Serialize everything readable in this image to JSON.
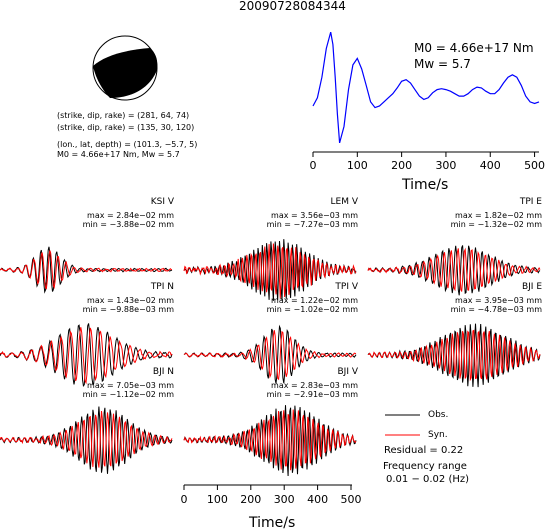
{
  "title": "20090728084344",
  "mechanism": {
    "plane1": "(strike, dip, rake) = (281, 64, 74)",
    "plane2": "(strike, dip, rake) = (135, 30, 120)",
    "location": "(lon., lat, depth) = (101.3, −5.7, 5)",
    "moment_line": "M0 = 4.66e+17 Nm, Mw = 5.7",
    "strike_deg": 281,
    "dip_deg": 64,
    "rake_deg": 74
  },
  "stf": {
    "m0_text": "M0 = 4.66e+17 Nm",
    "mw_text": "Mw = 5.7",
    "xlabel": "Time/s",
    "xticks": [
      0,
      100,
      200,
      300,
      400,
      500
    ],
    "color": "#0000ff"
  },
  "stations": [
    {
      "name": "KSI V",
      "max": "max = 2.84e−02 mm",
      "min": "min = −3.88e−02 mm"
    },
    {
      "name": "LEM V",
      "max": "max = 3.56e−03 mm",
      "min": "min = −7.27e−03 mm"
    },
    {
      "name": "TPI E",
      "max": "max = 1.82e−02 mm",
      "min": "min = −1.32e−02 mm"
    },
    {
      "name": "TPI N",
      "max": "max = 1.43e−02 mm",
      "min": "min = −9.88e−03 mm"
    },
    {
      "name": "TPI V",
      "max": "max = 1.22e−02 mm",
      "min": "min = −1.02e−02 mm"
    },
    {
      "name": "BJI E",
      "max": "max = 3.95e−03 mm",
      "min": "min = −4.78e−03 mm"
    },
    {
      "name": "BJI N",
      "max": "max = 7.05e−03 mm",
      "min": "min = −1.12e−02 mm"
    },
    {
      "name": "BJI V",
      "max": "max = 2.83e−03 mm",
      "min": "min = −2.91e−03 mm"
    }
  ],
  "waveform_axis": {
    "xlabel": "Time/s",
    "xticks": [
      0,
      100,
      200,
      300,
      400,
      500
    ]
  },
  "legend": {
    "obs": "Obs.",
    "syn": "Syn.",
    "obs_color": "#000000",
    "syn_color": "#ff0000"
  },
  "residual": "Residual = 0.22",
  "freq_label": "Frequency range",
  "freq_value": "0.01 − 0.02 (Hz)",
  "chart_data": {
    "type": "line",
    "title": "20090728084344",
    "xlabel": "Time/s",
    "xlim": [
      0,
      510
    ],
    "series": [
      {
        "name": "",
        "x": [
          0,
          10,
          20,
          30,
          40,
          45,
          50,
          55,
          60,
          70,
          80,
          90,
          100,
          110,
          120,
          130,
          140,
          150,
          160,
          170,
          180,
          190,
          200,
          210,
          220,
          230,
          240,
          250,
          260,
          270,
          280,
          290,
          300,
          310,
          320,
          330,
          340,
          350,
          360,
          370,
          380,
          390,
          400,
          410,
          420,
          430,
          440,
          450,
          460,
          470,
          480,
          490,
          500,
          510
        ],
        "y": [
          0.1,
          0.2,
          0.45,
          0.8,
          1.0,
          0.85,
          0.45,
          0.0,
          -0.35,
          -0.15,
          0.3,
          0.6,
          0.68,
          0.55,
          0.35,
          0.15,
          0.08,
          0.1,
          0.15,
          0.2,
          0.25,
          0.32,
          0.4,
          0.42,
          0.38,
          0.3,
          0.22,
          0.18,
          0.2,
          0.26,
          0.3,
          0.31,
          0.3,
          0.28,
          0.25,
          0.22,
          0.22,
          0.25,
          0.3,
          0.33,
          0.32,
          0.28,
          0.25,
          0.25,
          0.3,
          0.38,
          0.45,
          0.48,
          0.45,
          0.35,
          0.22,
          0.15,
          0.13,
          0.15
        ]
      }
    ]
  }
}
